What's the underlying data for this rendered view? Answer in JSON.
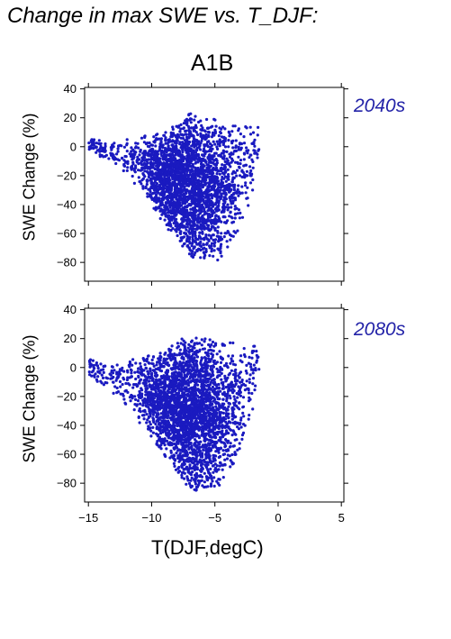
{
  "figure": {
    "title": "Change in max SWE vs. T_DJF:",
    "scenario": "A1B",
    "xlabel": "T(DJF,degC)"
  },
  "colors": {
    "points": "#1a1ac0",
    "period_label": "#2323a8",
    "axes": "#000000"
  },
  "chart_data": [
    {
      "type": "scatter",
      "period_label": "2040s",
      "ylabel": "SWE Change (%)",
      "xlim": [
        -15.3,
        5.2
      ],
      "ylim": [
        -93,
        41
      ],
      "x_ticks": [
        -15,
        -10,
        -5,
        0,
        5
      ],
      "y_ticks": [
        40,
        20,
        0,
        -20,
        -40,
        -60,
        -80
      ],
      "x_tick_labels_shown": false,
      "envelope": {
        "x": [
          -15.0,
          -14.0,
          -13.0,
          -12.0,
          -11.0,
          -10.0,
          -9.0,
          -8.0,
          -7.5,
          -7.0,
          -6.5,
          -6.0,
          -5.5,
          -5.0,
          -4.5,
          -4.0,
          -3.5,
          -3.0,
          -2.5,
          -2.0,
          -1.5
        ],
        "y_max": [
          7,
          4,
          5,
          6,
          7,
          8,
          11,
          16,
          20,
          25,
          21,
          18,
          20,
          19,
          15,
          16,
          15,
          16,
          15,
          14,
          15
        ],
        "y_min": [
          -3,
          -8,
          -12,
          -22,
          -28,
          -40,
          -55,
          -62,
          -70,
          -76,
          -78,
          -79,
          -81,
          -80,
          -77,
          -72,
          -65,
          -55,
          -45,
          -32,
          -5
        ]
      },
      "n_points": 2800
    },
    {
      "type": "scatter",
      "period_label": "2080s",
      "ylabel": "SWE Change (%)",
      "xlim": [
        -15.3,
        5.2
      ],
      "ylim": [
        -93,
        41
      ],
      "x_ticks": [
        -15,
        -10,
        -5,
        0,
        5
      ],
      "x_tick_labels": [
        "−15",
        "−10",
        "−5",
        "0",
        "5"
      ],
      "y_ticks": [
        40,
        20,
        0,
        -20,
        -40,
        -60,
        -80
      ],
      "envelope": {
        "x": [
          -15.0,
          -14.0,
          -13.0,
          -12.0,
          -11.0,
          -10.0,
          -9.0,
          -8.0,
          -7.5,
          -7.0,
          -6.5,
          -6.0,
          -5.5,
          -5.0,
          -4.5,
          -4.0,
          -3.5,
          -3.0,
          -2.5,
          -2.0,
          -1.5
        ],
        "y_max": [
          9,
          3,
          5,
          6,
          8,
          10,
          13,
          17,
          21,
          23,
          22,
          21,
          20,
          21,
          18,
          17,
          18,
          18,
          17,
          18,
          17
        ],
        "y_min": [
          -6,
          -12,
          -18,
          -28,
          -38,
          -48,
          -62,
          -72,
          -80,
          -84,
          -86,
          -86,
          -85,
          -84,
          -82,
          -75,
          -68,
          -58,
          -45,
          -30,
          -10
        ]
      },
      "n_points": 3000
    }
  ]
}
